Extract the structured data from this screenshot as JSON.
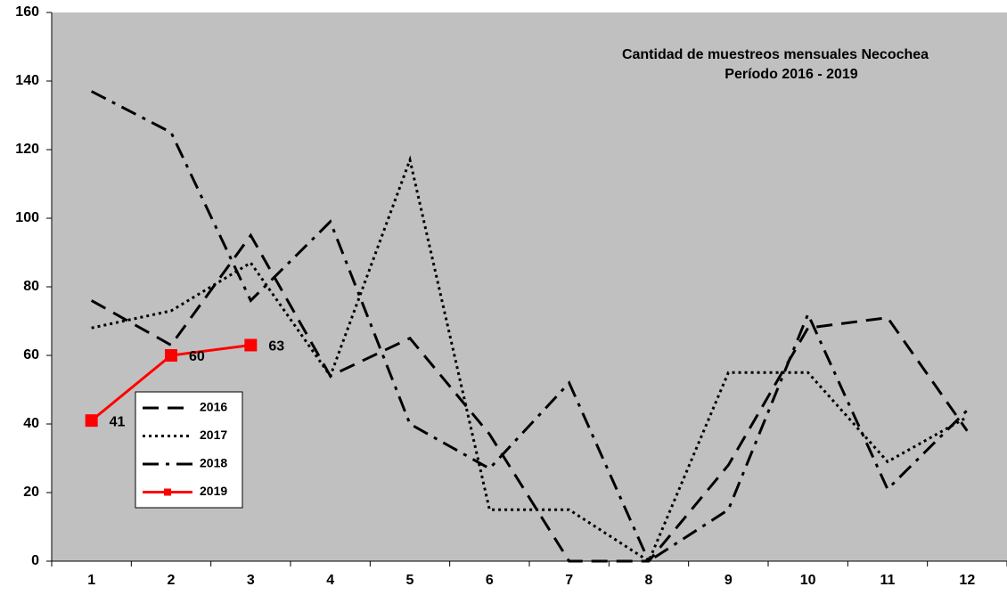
{
  "chart_data": {
    "type": "line",
    "title": "Cantidad de muestreos mensuales Necochea",
    "subtitle": "Período 2016 - 2019",
    "categories": [
      "1",
      "2",
      "3",
      "4",
      "5",
      "6",
      "7",
      "8",
      "9",
      "10",
      "11",
      "12"
    ],
    "series": [
      {
        "name": "2016",
        "color": "#000000",
        "line_style": "dashed",
        "values": [
          76,
          63,
          95,
          54,
          65,
          37,
          0,
          0,
          28,
          68,
          71,
          38
        ]
      },
      {
        "name": "2017",
        "color": "#000000",
        "line_style": "dotted",
        "values": [
          68,
          73,
          87,
          54,
          117,
          15,
          15,
          0,
          55,
          55,
          29,
          42
        ]
      },
      {
        "name": "2018",
        "color": "#000000",
        "line_style": "dashdot",
        "values": [
          137,
          125,
          76,
          99,
          40,
          27,
          52,
          0,
          15,
          72,
          21,
          44
        ]
      },
      {
        "name": "2019",
        "color": "#ff0000",
        "line_style": "solid",
        "marker": "square",
        "show_values": true,
        "values": [
          41,
          60,
          63,
          null,
          null,
          null,
          null,
          null,
          null,
          null,
          null,
          null
        ]
      }
    ],
    "ylim": [
      0,
      160
    ],
    "yticks": [
      0,
      20,
      40,
      60,
      80,
      100,
      120,
      140,
      160
    ],
    "plot_background": "#c0c0c0",
    "grid": false
  }
}
